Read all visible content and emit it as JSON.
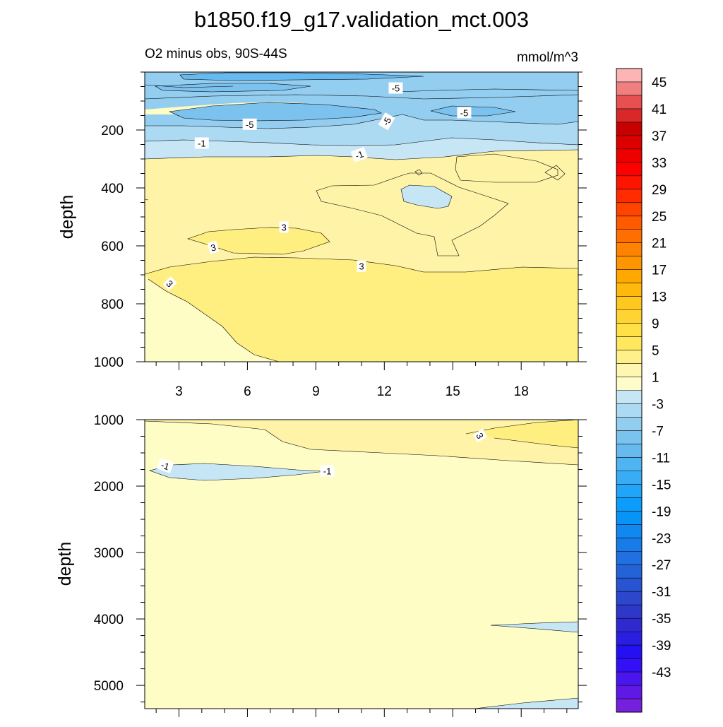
{
  "figure": {
    "title": "b1850.f19_g17.validation_mct.003",
    "left_string": "O2 minus obs, 90S-44S",
    "right_string": "mmol/m^3"
  },
  "colors": {
    "neg_1": "#c6e6f6",
    "neg_3": "#acdaf3",
    "neg_5": "#93cdf0",
    "neg_7": "#7cc2ee",
    "neg_9": "#66baef",
    "pos_1": "#fffdc6",
    "pos_3": "#fff3a8",
    "pos_5": "#ffee80"
  },
  "chart_data": [
    {
      "type": "heatmap",
      "subtype": "filled-contour",
      "panel": "upper",
      "x_ticks": [
        3,
        6,
        9,
        12,
        15,
        18
      ],
      "xlim": [
        1.5,
        20.5
      ],
      "ylim": [
        0,
        1000
      ],
      "y_ticks": [
        200,
        400,
        600,
        800,
        1000
      ],
      "y_inverted": true,
      "ylabel": "depth",
      "contour_labels": [
        {
          "text": "-5",
          "x": 12.5,
          "y": 55,
          "angle": 0
        },
        {
          "text": "-5",
          "x": 15.5,
          "y": 140,
          "angle": 0
        },
        {
          "text": "-5",
          "x": 12.1,
          "y": 170,
          "angle": -60
        },
        {
          "text": "-5",
          "x": 6.1,
          "y": 180,
          "angle": 0
        },
        {
          "text": "-1",
          "x": 4.0,
          "y": 245,
          "angle": 0
        },
        {
          "text": "-1",
          "x": 10.9,
          "y": 285,
          "angle": -20
        },
        {
          "text": "3",
          "x": 7.6,
          "y": 535,
          "angle": 0
        },
        {
          "text": "3",
          "x": 4.5,
          "y": 605,
          "angle": -15
        },
        {
          "text": "3",
          "x": 11.0,
          "y": 670,
          "angle": 0
        },
        {
          "text": "3",
          "x": 2.6,
          "y": 730,
          "angle": 45
        }
      ]
    },
    {
      "type": "heatmap",
      "subtype": "filled-contour",
      "panel": "lower",
      "xlim": [
        1.5,
        20.5
      ],
      "ylim": [
        1000,
        5350
      ],
      "y_ticks": [
        1000,
        2000,
        3000,
        4000,
        5000
      ],
      "y_inverted": true,
      "ylabel": "depth",
      "contour_labels": [
        {
          "text": "3",
          "x": 16.2,
          "y": 1240,
          "angle": 60
        },
        {
          "text": "-1",
          "x": 2.4,
          "y": 1690,
          "angle": 20
        },
        {
          "text": "-1",
          "x": 9.5,
          "y": 1770,
          "angle": 0
        }
      ]
    }
  ],
  "colorbar": {
    "labels": [
      "45",
      "41",
      "37",
      "33",
      "29",
      "25",
      "21",
      "17",
      "13",
      "9",
      "5",
      "1",
      "-3",
      "-7",
      "-11",
      "-15",
      "-19",
      "-23",
      "-27",
      "-31",
      "-35",
      "-39",
      "-43"
    ],
    "colors": [
      "#fcb4b4",
      "#f08080",
      "#e65050",
      "#d82828",
      "#c80000",
      "#dc0000",
      "#ee0000",
      "#ff0000",
      "#ff1400",
      "#ff2c00",
      "#ff4400",
      "#ff5a00",
      "#ff6e00",
      "#ff8200",
      "#ff9600",
      "#ffa800",
      "#ffb80c",
      "#ffc81e",
      "#ffd432",
      "#ffe046",
      "#ffe85e",
      "#fff08a",
      "#fff7b0",
      "#fffccc",
      "#c6e6f6",
      "#acdaf3",
      "#93cdf0",
      "#7cc2ee",
      "#66baef",
      "#4fb4f2",
      "#38adf6",
      "#20a5f8",
      "#0c9cfa",
      "#0894f6",
      "#1088f0",
      "#187ce8",
      "#2070e0",
      "#2462d8",
      "#2854d2",
      "#2c46cc",
      "#2e38c8",
      "#2e2ad0",
      "#2a1ee0",
      "#2410f0",
      "#3410f6",
      "#4a16ee",
      "#6018e6",
      "#7420dc"
    ]
  }
}
